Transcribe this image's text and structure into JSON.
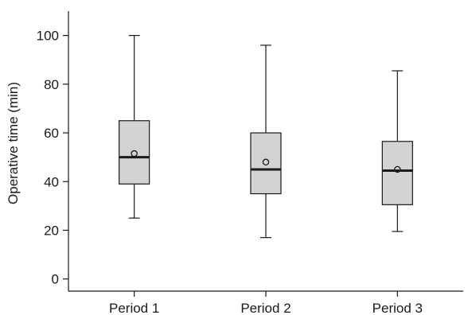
{
  "chart_data": {
    "type": "box",
    "title": "",
    "xlabel": "",
    "ylabel": "Operative time (min)",
    "ylim": [
      -5,
      110
    ],
    "y_ticks": [
      0,
      20,
      40,
      60,
      80,
      100
    ],
    "categories": [
      "Period 1",
      "Period 2",
      "Period 3"
    ],
    "boxes": [
      {
        "label": "Period 1",
        "whisker_low": 25,
        "q1": 39,
        "median": 50,
        "q3": 65,
        "whisker_high": 100,
        "mean": 51.5
      },
      {
        "label": "Period 2",
        "whisker_low": 17,
        "q1": 35,
        "median": 45,
        "q3": 60,
        "whisker_high": 96,
        "mean": 48
      },
      {
        "label": "Period 3",
        "whisker_low": 19.5,
        "q1": 30.5,
        "median": 44.5,
        "q3": 56.5,
        "whisker_high": 85.5,
        "mean": 45
      }
    ],
    "grid": false,
    "legend": "none",
    "colors": {
      "box_fill": "#d3d3d3",
      "stroke": "#1a1a1a"
    }
  }
}
